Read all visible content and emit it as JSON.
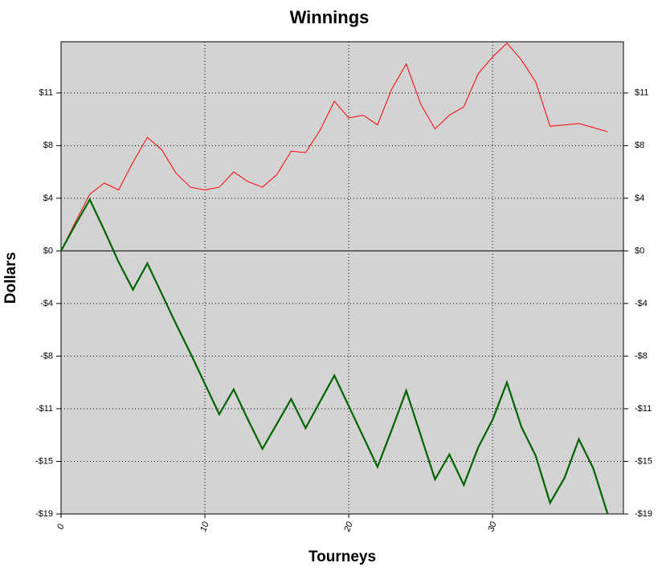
{
  "chart_data": {
    "type": "line",
    "title": "Winnings",
    "x_label": "Tourneys",
    "y_label": "Dollars",
    "x": [
      0,
      1,
      2,
      3,
      4,
      5,
      6,
      7,
      8,
      9,
      10,
      11,
      12,
      13,
      14,
      15,
      16,
      17,
      18,
      19,
      20,
      21,
      22,
      23,
      24,
      25,
      26,
      27,
      28,
      29,
      30,
      31,
      32,
      33,
      34,
      35,
      36,
      37,
      38
    ],
    "series": [
      {
        "color": "#ff0000",
        "values": [
          0,
          2.1,
          4.1,
          4.9,
          4.4,
          6.4,
          8.2,
          7.3,
          5.6,
          4.6,
          4.4,
          4.6,
          5.7,
          5.0,
          4.6,
          5.5,
          7.2,
          7.1,
          8.7,
          10.8,
          9.6,
          9.8,
          9.1,
          11.7,
          13.5,
          10.6,
          8.8,
          9.8,
          10.4,
          12.8,
          14.0,
          15.0,
          13.8,
          12.2,
          9.0,
          9.1,
          9.2,
          8.9,
          8.6
        ]
      },
      {
        "color": "#006400",
        "values": [
          0,
          1.9,
          3.7,
          1.5,
          -0.8,
          -2.8,
          -0.9,
          -3.1,
          -5.3,
          -7.4,
          -9.6,
          -11.8,
          -10.0,
          -12.2,
          -14.3,
          -12.5,
          -10.7,
          -12.8,
          -10.9,
          -9.0,
          -11.2,
          -13.4,
          -15.6,
          -12.9,
          -10.1,
          -13.3,
          -16.5,
          -14.7,
          -16.9,
          -14.2,
          -12.2,
          -9.5,
          -12.7,
          -14.8,
          -18.2,
          -16.4,
          -13.6,
          -15.7,
          -19.0
        ]
      }
    ],
    "xlim": [
      0,
      39.1
    ],
    "xticks": [
      0,
      10,
      20,
      30
    ],
    "ylim": [
      -19,
      15.1
    ],
    "yticks": [
      {
        "value": -19,
        "label": "-$19"
      },
      {
        "value": -15.2,
        "label": "-$15"
      },
      {
        "value": -11.4,
        "label": "-$11"
      },
      {
        "value": -7.6,
        "label": "-$8"
      },
      {
        "value": -3.8,
        "label": "-$4"
      },
      {
        "value": 0,
        "label": "$0"
      },
      {
        "value": 3.8,
        "label": "$4"
      },
      {
        "value": 7.6,
        "label": "$8"
      },
      {
        "value": 11.4,
        "label": "$11"
      }
    ],
    "grid": true
  }
}
